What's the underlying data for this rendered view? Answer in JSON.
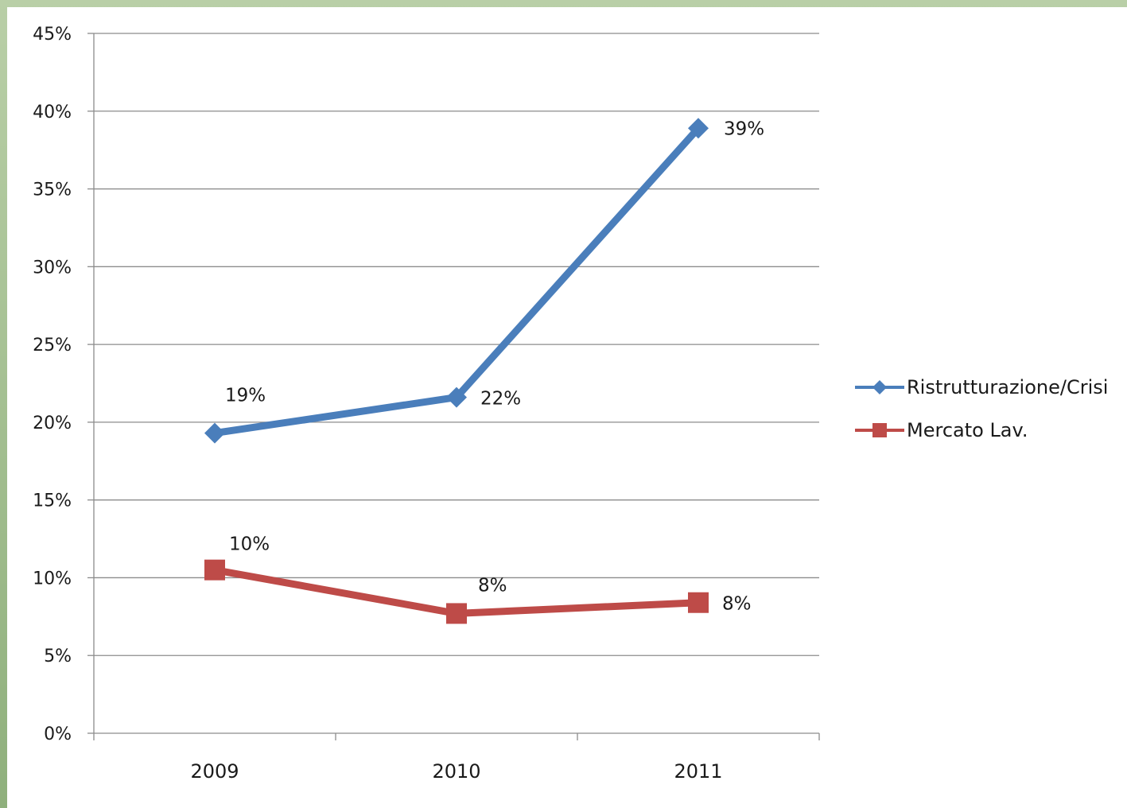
{
  "chart_data": {
    "type": "line",
    "title": "",
    "xlabel": "",
    "ylabel": "",
    "categories": [
      "2009",
      "2010",
      "2011"
    ],
    "ylim": [
      0,
      45
    ],
    "y_ticks": [
      "0%",
      "5%",
      "10%",
      "15%",
      "20%",
      "25%",
      "30%",
      "35%",
      "40%",
      "45%"
    ],
    "grid": true,
    "legend_position": "right",
    "series": [
      {
        "name": "Ristrutturazione/Crisi",
        "color": "#4a7ebb",
        "marker": "diamond",
        "values": [
          19.3,
          21.6,
          38.9
        ],
        "labels": [
          "19%",
          "22%",
          "39%"
        ]
      },
      {
        "name": "Mercato Lav.",
        "color": "#be4b48",
        "marker": "square",
        "values": [
          10.5,
          7.7,
          8.4
        ],
        "labels": [
          "10%",
          "8%",
          "8%"
        ]
      }
    ]
  }
}
